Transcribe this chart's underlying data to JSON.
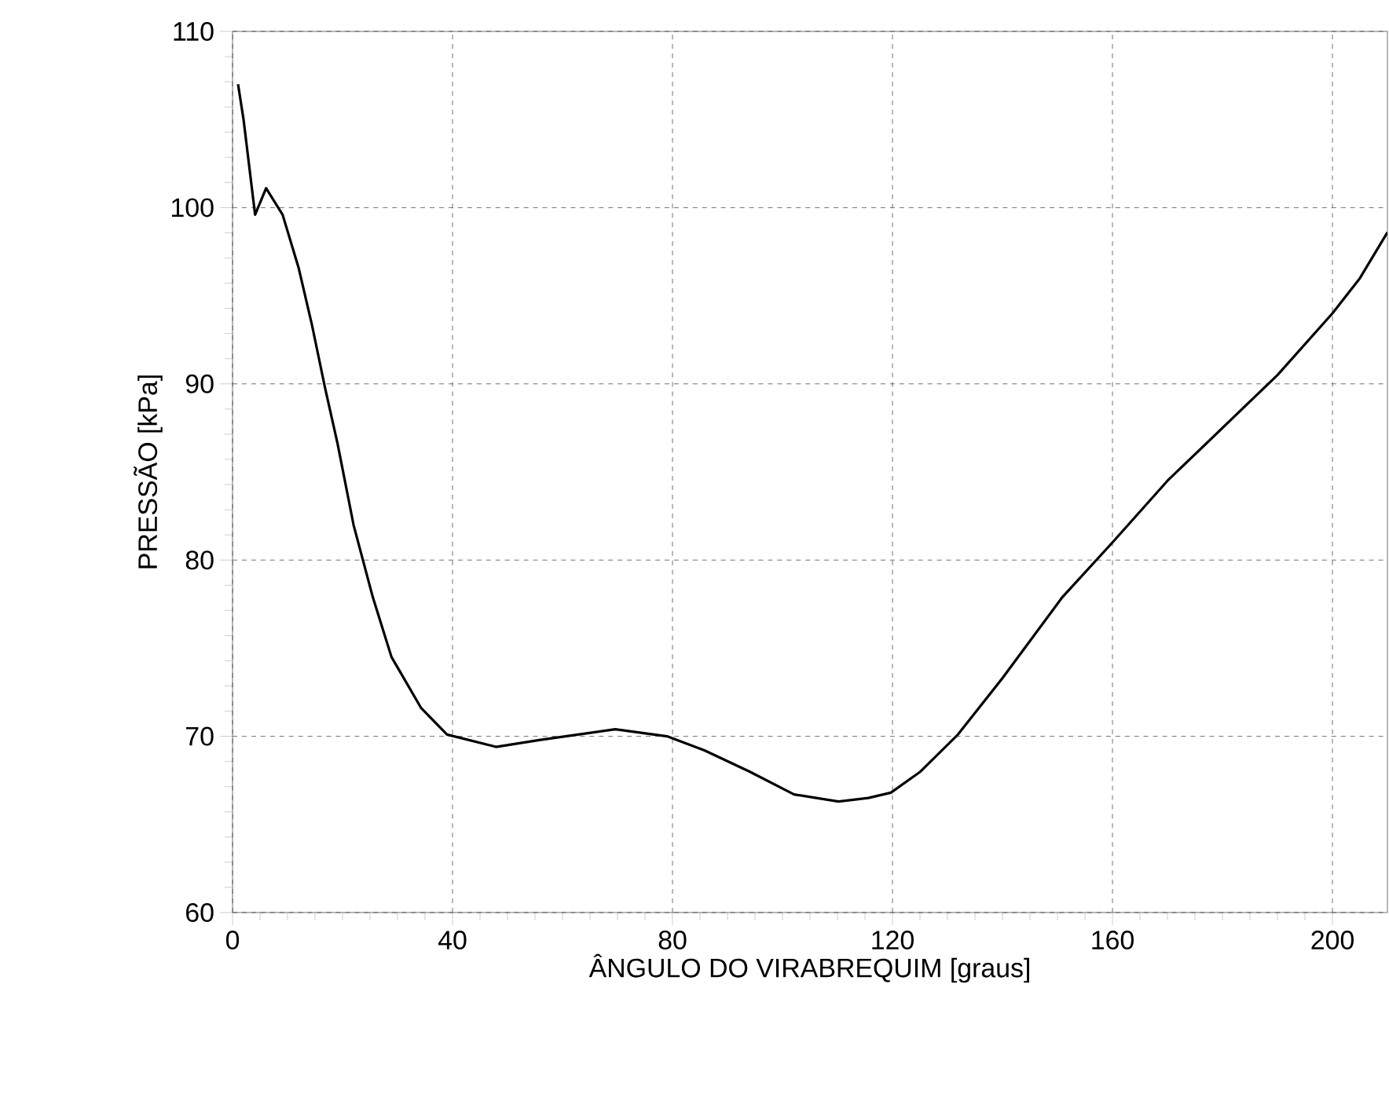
{
  "chart_data": {
    "type": "line",
    "xlabel": "ÂNGULO DO VIRABREQUIM [graus]",
    "ylabel": "PRESSÃO [kPa]",
    "xlim": [
      0,
      210
    ],
    "ylim": [
      60,
      110
    ],
    "xticks": [
      0,
      40,
      80,
      120,
      160,
      200
    ],
    "yticks": [
      60,
      70,
      80,
      90,
      100,
      110
    ],
    "grid": true,
    "marker": "none",
    "line_style": "solid",
    "series": [
      {
        "color": "#000000",
        "x": [
          1,
          2,
          4.1,
          6.1,
          9.1,
          12,
          14.4,
          16.8,
          19.1,
          22,
          25.5,
          28.9,
          34.3,
          39,
          47.9,
          56,
          69.6,
          79,
          85.8,
          94,
          102.1,
          110.2,
          115.6,
          119.7,
          125.1,
          131.9,
          140,
          150.9,
          160,
          170,
          180,
          190,
          200,
          205,
          210
        ],
        "values": [
          107,
          105,
          99.6,
          101.1,
          99.6,
          96.6,
          93.4,
          89.8,
          86.6,
          82,
          77.9,
          74.5,
          71.6,
          70.1,
          69.4,
          69.8,
          70.4,
          70,
          69.2,
          68,
          66.7,
          66.3,
          66.5,
          66.8,
          68,
          70.1,
          73.3,
          77.9,
          81,
          84.5,
          87.5,
          90.5,
          94,
          96,
          98.6
        ]
      }
    ]
  }
}
